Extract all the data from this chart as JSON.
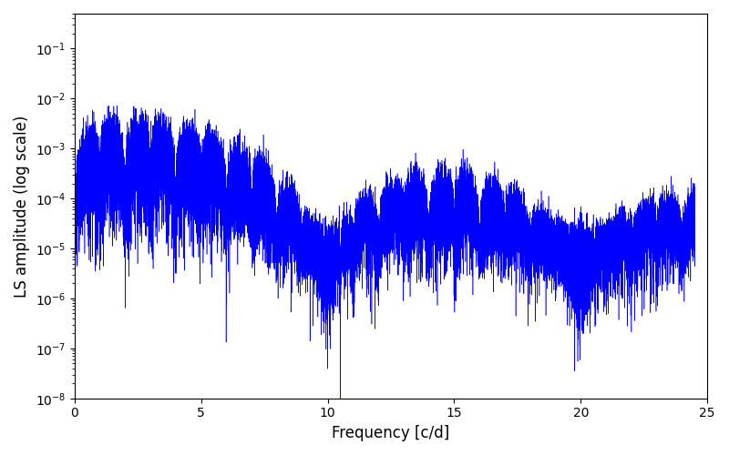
{
  "xlabel": "Frequency [c/d]",
  "ylabel": "LS amplitude (log scale)",
  "line_color": "#0000ff",
  "xlim": [
    0,
    25
  ],
  "ylim": [
    1e-08,
    0.5
  ],
  "freq_max": 24.5,
  "n_freq": 25000,
  "seed": 7,
  "background_color": "#ffffff",
  "figsize": [
    8.0,
    5.0
  ],
  "dpi": 100,
  "xticks": [
    0,
    5,
    10,
    15,
    20,
    25
  ],
  "linewidth": 0.4
}
